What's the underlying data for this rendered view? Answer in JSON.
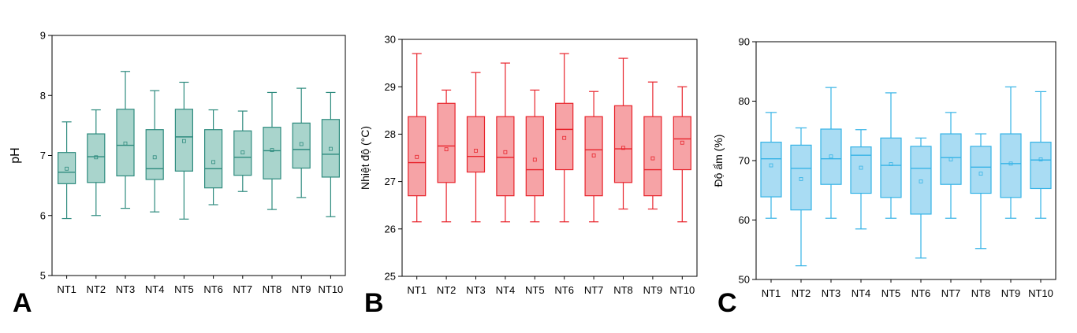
{
  "figure": {
    "panel_letters": [
      "A",
      "B",
      "C"
    ]
  },
  "colors": {
    "A": {
      "stroke": "#2e8b7e",
      "fill": "#a9d4cc"
    },
    "B": {
      "stroke": "#e8232b",
      "fill": "#f6a3a6"
    },
    "C": {
      "stroke": "#36b3e6",
      "fill": "#a9dcf3"
    }
  },
  "chart_data": [
    {
      "type": "box",
      "panel": "A",
      "ylabel": "pH",
      "xlabel": "",
      "ylim": [
        5,
        9
      ],
      "yticks": [
        5,
        6,
        7,
        8,
        9
      ],
      "categories": [
        "NT1",
        "NT2",
        "NT3",
        "NT4",
        "NT5",
        "NT6",
        "NT7",
        "NT8",
        "NT9",
        "NT10"
      ],
      "boxes": [
        {
          "min": 5.95,
          "q1": 6.53,
          "median": 6.72,
          "q3": 7.05,
          "max": 7.56,
          "mean": 6.78
        },
        {
          "min": 6.0,
          "q1": 6.55,
          "median": 6.98,
          "q3": 7.36,
          "max": 7.76,
          "mean": 6.97
        },
        {
          "min": 6.12,
          "q1": 6.66,
          "median": 7.17,
          "q3": 7.77,
          "max": 8.4,
          "mean": 7.2
        },
        {
          "min": 6.06,
          "q1": 6.6,
          "median": 6.78,
          "q3": 7.43,
          "max": 8.08,
          "mean": 6.97
        },
        {
          "min": 5.94,
          "q1": 6.74,
          "median": 7.31,
          "q3": 7.77,
          "max": 8.22,
          "mean": 7.24
        },
        {
          "min": 6.18,
          "q1": 6.46,
          "median": 6.78,
          "q3": 7.43,
          "max": 7.76,
          "mean": 6.89
        },
        {
          "min": 6.4,
          "q1": 6.67,
          "median": 6.97,
          "q3": 7.41,
          "max": 7.74,
          "mean": 7.05
        },
        {
          "min": 6.1,
          "q1": 6.61,
          "median": 7.08,
          "q3": 7.47,
          "max": 8.05,
          "mean": 7.09
        },
        {
          "min": 6.3,
          "q1": 6.79,
          "median": 7.1,
          "q3": 7.54,
          "max": 8.12,
          "mean": 7.19
        },
        {
          "min": 5.98,
          "q1": 6.64,
          "median": 7.02,
          "q3": 7.6,
          "max": 8.05,
          "mean": 7.11
        }
      ]
    },
    {
      "type": "box",
      "panel": "B",
      "ylabel": "Nhiệt độ (°C)",
      "xlabel": "",
      "ylim": [
        25,
        30
      ],
      "yticks": [
        25,
        26,
        27,
        28,
        29,
        30
      ],
      "categories": [
        "NT1",
        "NT2",
        "NT3",
        "NT4",
        "NT5",
        "NT6",
        "NT7",
        "NT8",
        "NT9",
        "NT10"
      ],
      "boxes": [
        {
          "min": 26.15,
          "q1": 26.7,
          "median": 27.4,
          "q3": 28.37,
          "max": 29.7,
          "mean": 27.52
        },
        {
          "min": 26.15,
          "q1": 26.98,
          "median": 27.75,
          "q3": 28.65,
          "max": 28.93,
          "mean": 27.68
        },
        {
          "min": 26.15,
          "q1": 27.2,
          "median": 27.53,
          "q3": 28.37,
          "max": 29.3,
          "mean": 27.65
        },
        {
          "min": 26.15,
          "q1": 26.7,
          "median": 27.51,
          "q3": 28.37,
          "max": 29.5,
          "mean": 27.62
        },
        {
          "min": 26.15,
          "q1": 26.7,
          "median": 27.25,
          "q3": 28.37,
          "max": 28.93,
          "mean": 27.46
        },
        {
          "min": 26.15,
          "q1": 27.25,
          "median": 28.1,
          "q3": 28.65,
          "max": 29.7,
          "mean": 27.92
        },
        {
          "min": 26.15,
          "q1": 26.7,
          "median": 27.67,
          "q3": 28.37,
          "max": 28.9,
          "mean": 27.55
        },
        {
          "min": 26.42,
          "q1": 26.98,
          "median": 27.69,
          "q3": 28.6,
          "max": 29.6,
          "mean": 27.71
        },
        {
          "min": 26.42,
          "q1": 26.7,
          "median": 27.25,
          "q3": 28.37,
          "max": 29.1,
          "mean": 27.49
        },
        {
          "min": 26.15,
          "q1": 27.25,
          "median": 27.9,
          "q3": 28.37,
          "max": 29.0,
          "mean": 27.82
        }
      ]
    },
    {
      "type": "box",
      "panel": "C",
      "ylabel": "Độ ẩm (%)",
      "xlabel": "",
      "ylim": [
        50,
        90
      ],
      "yticks": [
        50,
        60,
        70,
        80,
        90
      ],
      "categories": [
        "NT1",
        "NT2",
        "NT3",
        "NT4",
        "NT5",
        "NT6",
        "NT7",
        "NT8",
        "NT9",
        "NT10"
      ],
      "boxes": [
        {
          "min": 60.3,
          "q1": 63.9,
          "median": 70.3,
          "q3": 73.1,
          "max": 78.1,
          "mean": 69.2
        },
        {
          "min": 52.3,
          "q1": 61.7,
          "median": 68.7,
          "q3": 72.6,
          "max": 75.5,
          "mean": 66.9
        },
        {
          "min": 60.3,
          "q1": 66.0,
          "median": 70.3,
          "q3": 75.3,
          "max": 82.3,
          "mean": 70.7
        },
        {
          "min": 58.5,
          "q1": 64.5,
          "median": 70.9,
          "q3": 72.3,
          "max": 75.2,
          "mean": 68.8
        },
        {
          "min": 60.3,
          "q1": 63.8,
          "median": 69.2,
          "q3": 73.8,
          "max": 81.4,
          "mean": 69.4
        },
        {
          "min": 53.6,
          "q1": 61.0,
          "median": 68.7,
          "q3": 72.4,
          "max": 73.8,
          "mean": 66.5
        },
        {
          "min": 60.3,
          "q1": 66.0,
          "median": 70.5,
          "q3": 74.5,
          "max": 78.1,
          "mean": 70.2
        },
        {
          "min": 55.2,
          "q1": 64.5,
          "median": 68.9,
          "q3": 72.4,
          "max": 74.5,
          "mean": 67.8
        },
        {
          "min": 60.3,
          "q1": 63.8,
          "median": 69.5,
          "q3": 74.5,
          "max": 82.4,
          "mean": 69.5
        },
        {
          "min": 60.3,
          "q1": 65.3,
          "median": 70.1,
          "q3": 73.1,
          "max": 81.6,
          "mean": 70.2
        }
      ]
    }
  ]
}
